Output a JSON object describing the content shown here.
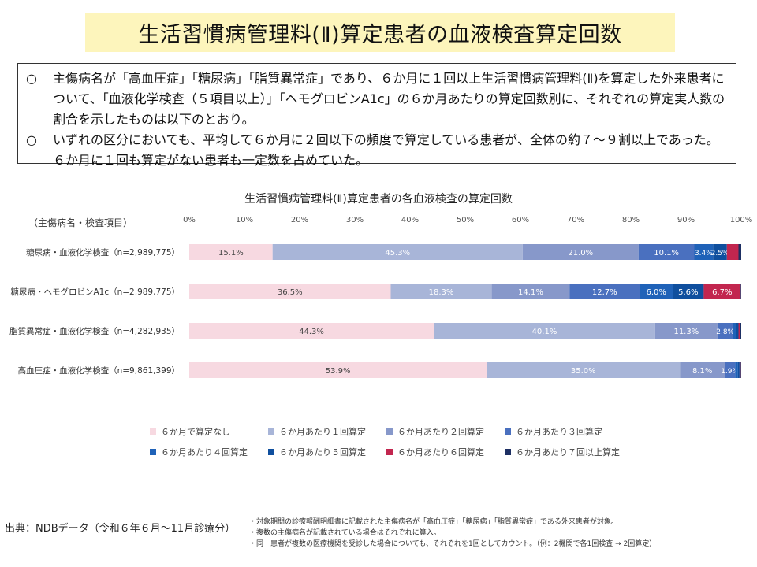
{
  "page": {
    "title": "生活習慣病管理料(Ⅱ)算定患者の血液検査算定回数",
    "summary": [
      {
        "bullet": "○",
        "text": "主傷病名が「高血圧症」「糖尿病」「脂質異常症」であり、６か月に１回以上生活習慣病管理料(Ⅱ)を算定した外来患者について、「血液化学検査（５項目以上）」「ヘモグロビンA1c」の６か月あたりの算定回数別に、それぞれの算定実人数の割合を示したものは以下のとおり。"
      },
      {
        "bullet": "○",
        "text": "いずれの区分においても、平均して６か月に２回以下の頻度で算定している患者が、全体の約７～９割以上であった。６か月に１回も算定がない患者も一定数を占めていた。"
      }
    ],
    "source": "出典：NDBデータ（令和６年６月～11月診療分）",
    "notes": [
      "・対象期間の診療報酬明細書に記載された主傷病名が「高血圧症」「糖尿病」「脂質異常症」である外来患者が対象。",
      "・複数の主傷病名が記載されている場合はそれぞれに算入。",
      "・同一患者が複数の医療機関を受診した場合についても、それぞれを1回としてカウント。（例：2機関で各1回検査 → 2回算定）"
    ]
  },
  "chart_data": {
    "type": "bar",
    "orientation": "horizontal-stacked-100",
    "title": "生活習慣病管理料(Ⅱ)算定患者の各血液検査の算定回数",
    "category_axis_label": "（主傷病名・検査項目）",
    "x_ticks": [
      "0%",
      "10%",
      "20%",
      "30%",
      "40%",
      "50%",
      "60%",
      "70%",
      "80%",
      "90%",
      "100%"
    ],
    "xlim": [
      0,
      100
    ],
    "legend_position": "bottom",
    "categories": [
      "糖尿病・血液化学検査（n=2,989,775）",
      "糖尿病・ヘモグロビンA1c（n=2,989,775）",
      "脂質異常症・血液化学検査（n=4,282,935）",
      "高血圧症・血液化学検査（n=9,861,399）"
    ],
    "series": [
      {
        "name": "６か月で算定なし",
        "color": "#f7d9e1",
        "label_color": "#444444",
        "values": [
          15.1,
          36.5,
          44.3,
          53.9
        ],
        "labels": [
          "15.1%",
          "36.5%",
          "44.3%",
          "53.9%"
        ]
      },
      {
        "name": "６か月あたり１回算定",
        "color": "#a8b5d8",
        "label_color": "#ffffff",
        "values": [
          45.3,
          18.3,
          40.1,
          35.0
        ],
        "labels": [
          "45.3%",
          "18.3%",
          "40.1%",
          "35.0%"
        ]
      },
      {
        "name": "６か月あたり２回算定",
        "color": "#8798ca",
        "label_color": "#ffffff",
        "values": [
          21.0,
          14.1,
          11.3,
          8.1
        ],
        "labels": [
          "21.0%",
          "14.1%",
          "11.3%",
          "8.1%"
        ]
      },
      {
        "name": "６か月あたり３回算定",
        "color": "#4a70bf",
        "label_color": "#ffffff",
        "values": [
          10.1,
          12.7,
          2.8,
          1.9
        ],
        "labels": [
          "10.1%",
          "12.7%",
          "2.8%",
          "1.9%"
        ]
      },
      {
        "name": "６か月あたり４回算定",
        "color": "#1f62b8",
        "label_color": "#ffffff",
        "values": [
          3.4,
          6.0,
          0.6,
          0.5
        ],
        "labels": [
          "3.4%",
          "6.0%",
          "",
          ""
        ]
      },
      {
        "name": "６か月あたり５回算定",
        "color": "#0f4f9e",
        "label_color": "#ffffff",
        "values": [
          2.5,
          5.6,
          0.4,
          0.3
        ],
        "labels": [
          "2.5%",
          "5.6%",
          "",
          ""
        ]
      },
      {
        "name": "６か月あたり６回算定",
        "color": "#c2264f",
        "label_color": "#ffffff",
        "values": [
          2.1,
          6.7,
          0.3,
          0.2
        ],
        "labels": [
          "",
          "6.7%",
          "",
          ""
        ]
      },
      {
        "name": "６か月あたり７回以上算定",
        "color": "#1d2f63",
        "label_color": "#ffffff",
        "values": [
          0.5,
          0.1,
          0.2,
          0.1
        ],
        "labels": [
          "",
          "",
          "",
          ""
        ]
      }
    ]
  }
}
